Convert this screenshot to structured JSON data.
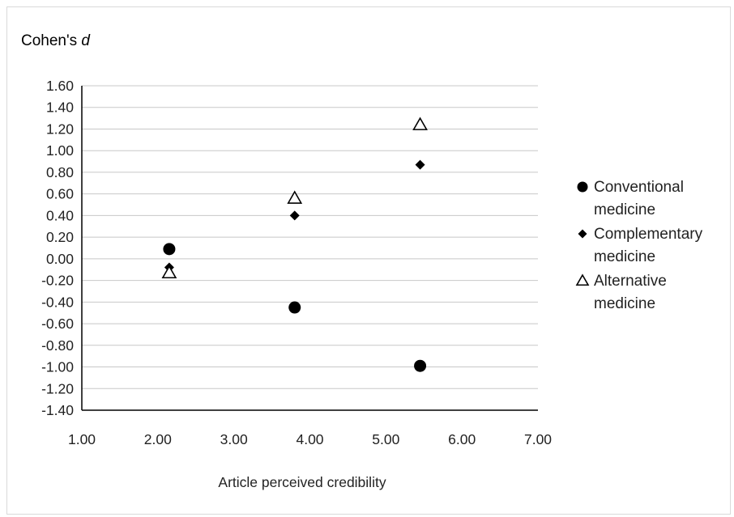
{
  "chart_data": {
    "type": "scatter",
    "ylabel_prefix": "Cohen's ",
    "ylabel_italic": "d",
    "xlabel": "Article perceived credibility",
    "xlim": [
      1.0,
      7.0
    ],
    "ylim": [
      -1.4,
      1.6
    ],
    "grid": true,
    "legend_position": "right",
    "x_ticks": [
      "1.00",
      "2.00",
      "3.00",
      "4.00",
      "5.00",
      "6.00",
      "7.00"
    ],
    "y_ticks": [
      "1.60",
      "1.40",
      "1.20",
      "1.00",
      "0.80",
      "0.60",
      "0.40",
      "0.20",
      "0.00",
      "-0.20",
      "-0.40",
      "-0.60",
      "-0.80",
      "-1.00",
      "-1.20",
      "-1.40"
    ],
    "series": [
      {
        "name_lines": [
          "Conventional",
          "medicine"
        ],
        "marker": "circle",
        "color": "#000000",
        "points": [
          {
            "x": 2.15,
            "y": 0.09
          },
          {
            "x": 3.8,
            "y": -0.45
          },
          {
            "x": 5.45,
            "y": -0.99
          }
        ]
      },
      {
        "name_lines": [
          "Complementary",
          "medicine"
        ],
        "marker": "diamond",
        "color": "#000000",
        "points": [
          {
            "x": 2.15,
            "y": -0.08
          },
          {
            "x": 3.8,
            "y": 0.4
          },
          {
            "x": 5.45,
            "y": 0.87
          }
        ]
      },
      {
        "name_lines": [
          "Alternative",
          "medicine"
        ],
        "marker": "triangle-open",
        "color": "#000000",
        "points": [
          {
            "x": 2.15,
            "y": -0.13
          },
          {
            "x": 3.8,
            "y": 0.56
          },
          {
            "x": 5.45,
            "y": 1.24
          }
        ]
      }
    ]
  }
}
